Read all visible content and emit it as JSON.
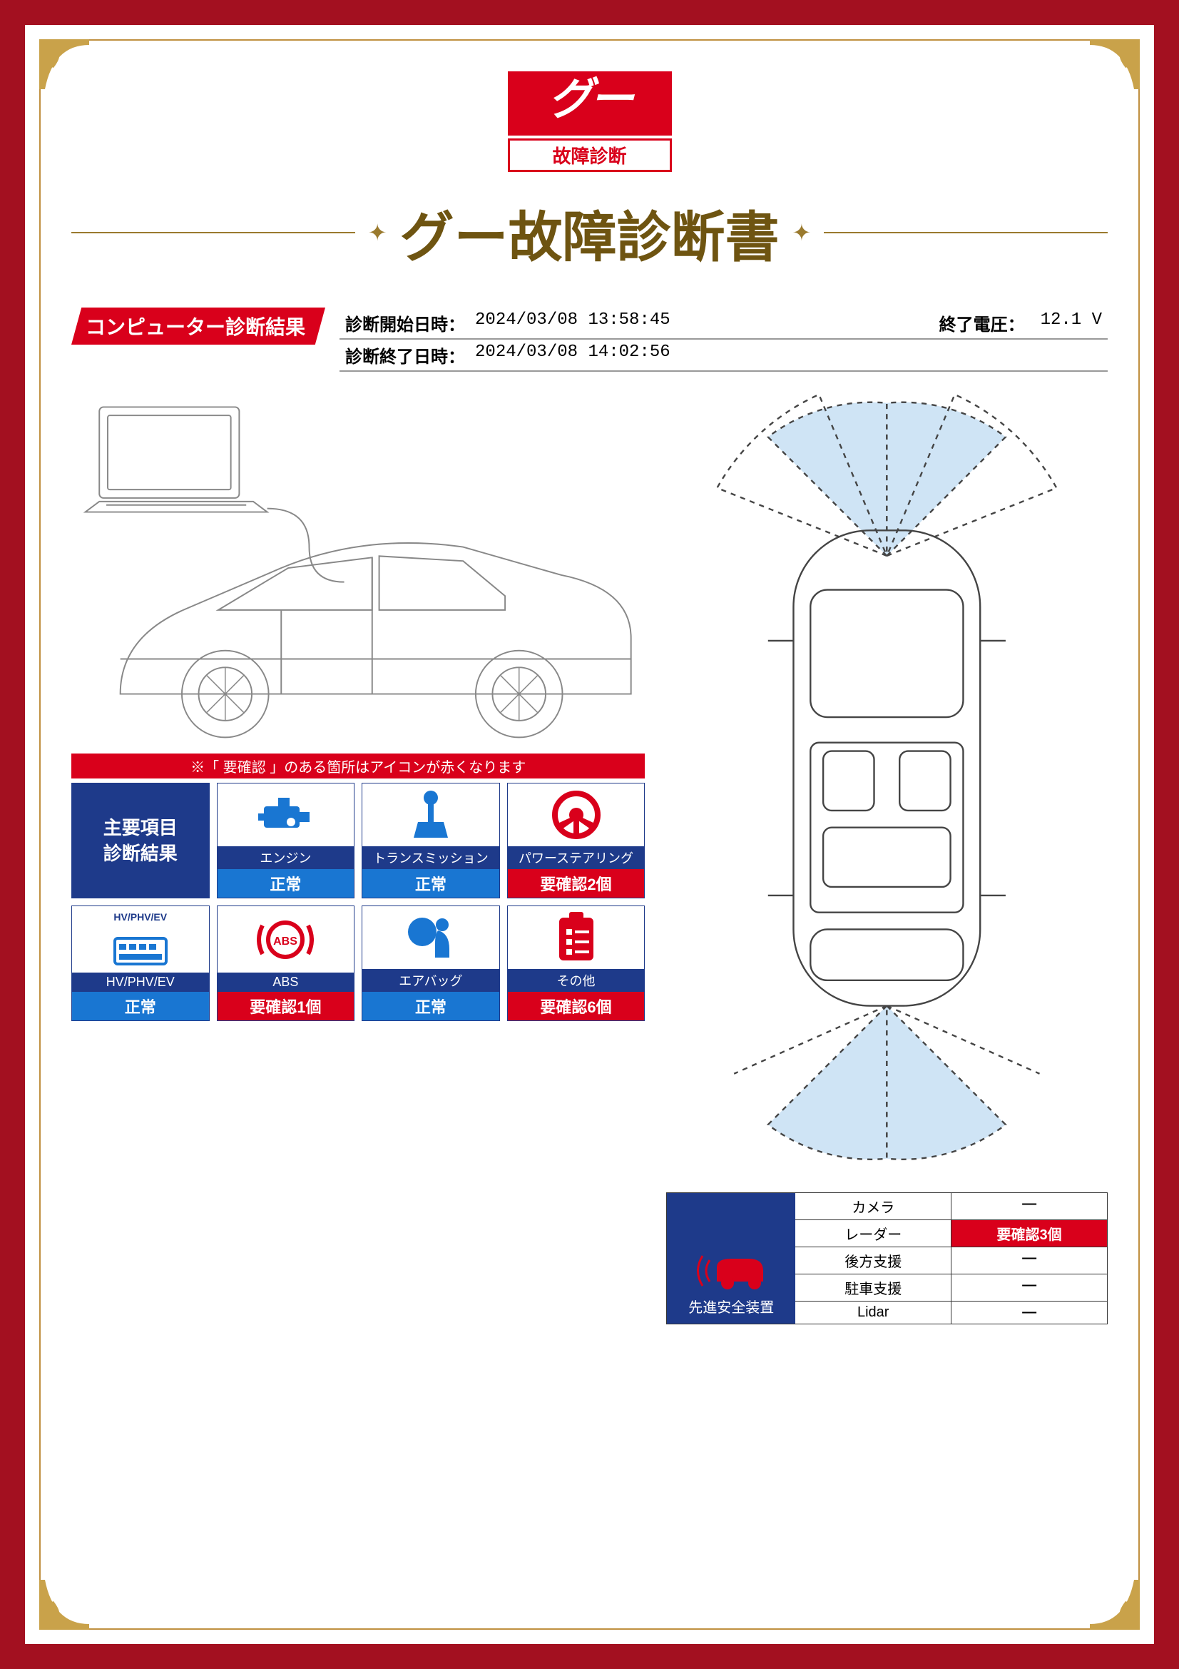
{
  "brand": {
    "logo_text": "グー",
    "logo_subtext": "故障診断",
    "logo_bg": "#d9001b",
    "logo_fg": "#ffffff"
  },
  "title": "グー故障診断書",
  "title_color": "#6e5411",
  "frame": {
    "outer_color": "#a31020",
    "inner_color": "#c09040",
    "corner_color": "#c9a24a"
  },
  "section_tab": "コンピューター診断結果",
  "meta": {
    "start_label": "診断開始日時：",
    "start_value": "2024/03/08 13:58:45",
    "end_label": "診断終了日時：",
    "end_value": "2024/03/08 14:02:56",
    "voltage_label": "終了電圧：",
    "voltage_value": "12.1 V"
  },
  "note_bar": "※「 要確認 」のある箇所はアイコンが赤くなります",
  "colors": {
    "navy": "#1e3a8a",
    "blue": "#1976d2",
    "red": "#d9001b",
    "icon_blue": "#1976d2",
    "icon_red": "#d9001b"
  },
  "header_card": {
    "line1": "主要項目",
    "line2": "診断結果"
  },
  "cards": [
    {
      "name": "エンジン",
      "status": "正常",
      "status_type": "ok",
      "icon": "engine",
      "icon_color": "#1976d2"
    },
    {
      "name": "トランスミッション",
      "status": "正常",
      "status_type": "ok",
      "icon": "trans",
      "icon_color": "#1976d2"
    },
    {
      "name": "パワーステアリング",
      "status": "要確認2個",
      "status_type": "warn",
      "icon": "steering",
      "icon_color": "#d9001b"
    },
    {
      "name": "HV/PHV/EV",
      "status": "正常",
      "status_type": "ok",
      "icon": "hvev",
      "icon_color": "#1976d2",
      "top_label": "HV/PHV/EV"
    },
    {
      "name": "ABS",
      "status": "要確認1個",
      "status_type": "warn",
      "icon": "abs",
      "icon_color": "#d9001b"
    },
    {
      "name": "エアバッグ",
      "status": "正常",
      "status_type": "ok",
      "icon": "airbag",
      "icon_color": "#1976d2"
    },
    {
      "name": "その他",
      "status": "要確認6個",
      "status_type": "warn",
      "icon": "clipboard",
      "icon_color": "#d9001b"
    }
  ],
  "safety": {
    "title": "先進安全装置",
    "car_icon_color": "#d9001b",
    "rows": [
      {
        "label": "カメラ",
        "value": "―",
        "warn": false
      },
      {
        "label": "レーダー",
        "value": "要確認3個",
        "warn": true
      },
      {
        "label": "後方支援",
        "value": "―",
        "warn": false
      },
      {
        "label": "駐車支援",
        "value": "―",
        "warn": false
      },
      {
        "label": "Lidar",
        "value": "―",
        "warn": false
      }
    ]
  },
  "diagram": {
    "line_color": "#888888",
    "sensor_fill": "#cfe4f5"
  }
}
